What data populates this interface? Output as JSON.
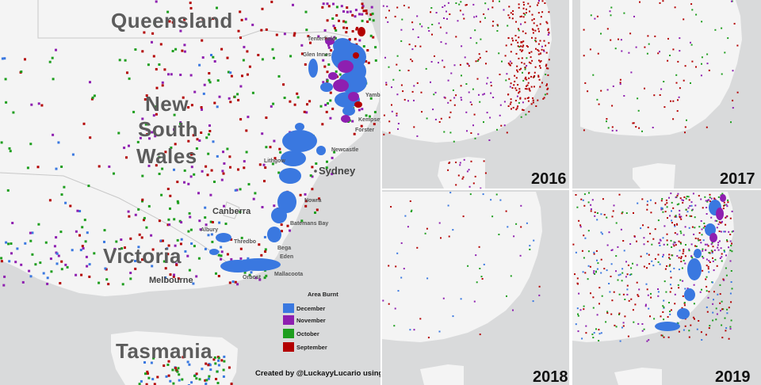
{
  "colors": {
    "ocean": "#d9dadb",
    "land": "#f4f4f4",
    "border": "#c8c8c8",
    "december": "#3a78e0",
    "november": "#8e1fb0",
    "october": "#1e9e1e",
    "september": "#b30000"
  },
  "main_map": {
    "states": [
      "Queensland",
      "New",
      "South",
      "Wales",
      "Victoria",
      "Tasmania"
    ],
    "big_cities": [
      "Sydney"
    ],
    "towns": [
      "Tenterfield",
      "Glen Innes",
      "Yamba",
      "Kempsey",
      "Forster",
      "Newcastle",
      "Lithgow",
      "Nowra",
      "Canberra",
      "Batemans Bay",
      "Albury",
      "Thredbo",
      "Bega",
      "Eden",
      "Melbourne",
      "Orbost",
      "Mallacoota"
    ]
  },
  "legend": {
    "title": "Area Burnt",
    "items": [
      {
        "label": "December",
        "color": "#3a78e0"
      },
      {
        "label": "November",
        "color": "#8e1fb0"
      },
      {
        "label": "October",
        "color": "#1e9e1e"
      },
      {
        "label": "September",
        "color": "#b30000"
      }
    ]
  },
  "credit": "Created by @LuckayyLucario using NASA FIRMS",
  "panels": [
    {
      "year": "2016"
    },
    {
      "year": "2017"
    },
    {
      "year": "2018"
    },
    {
      "year": "2019"
    }
  ]
}
